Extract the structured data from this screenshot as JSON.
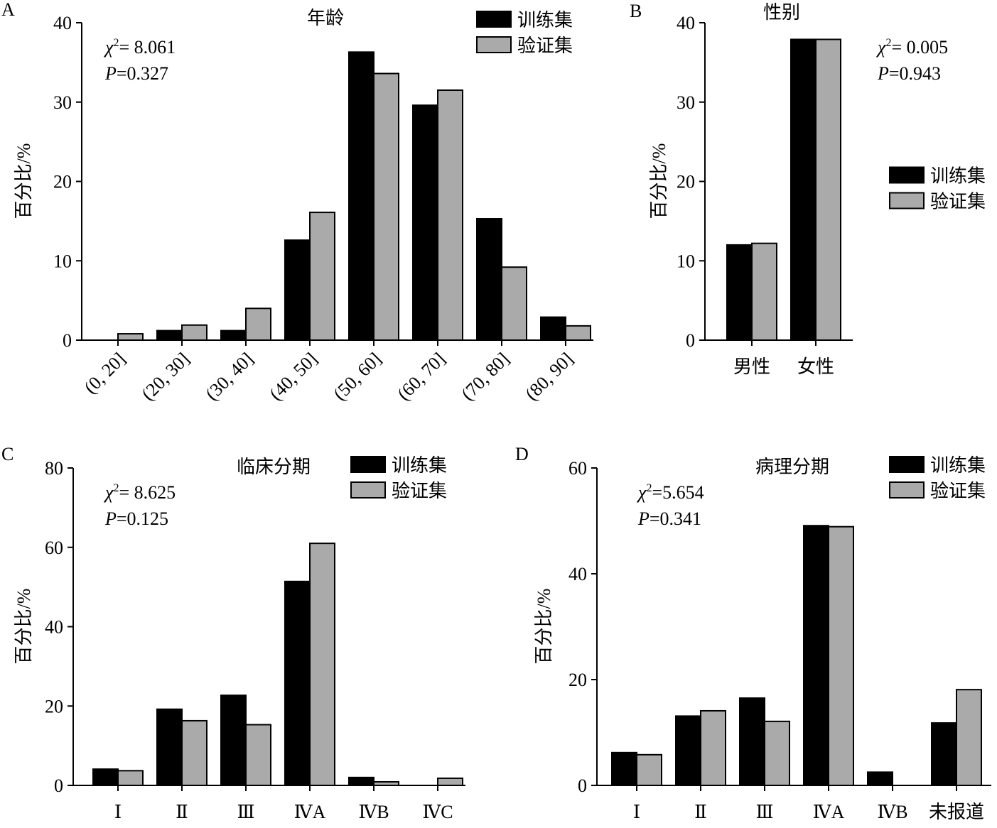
{
  "chart_data": [
    {
      "type": "bar",
      "panel": "A",
      "title": "年龄",
      "ylabel": "百分比/%",
      "categories": [
        "(0, 20]",
        "(20, 30]",
        "(30, 40]",
        "(40, 50]",
        "(50, 60]",
        "(60, 70]",
        "(70, 80]",
        "(80, 90]"
      ],
      "series": [
        {
          "name": "训练集",
          "color": "#000000",
          "values": [
            0,
            1.2,
            1.2,
            12.6,
            36.3,
            29.6,
            15.3,
            2.9
          ]
        },
        {
          "name": "验证集",
          "color": "#aaaaaa",
          "values": [
            0.8,
            1.9,
            4.0,
            16.1,
            33.6,
            31.5,
            9.2,
            1.8
          ]
        }
      ],
      "ylim": [
        0,
        40
      ],
      "yticks": [
        0,
        10,
        20,
        30,
        40
      ],
      "legend": "upper right",
      "rotate_xlabels": true,
      "annotation": {
        "chi_symbol": "χ",
        "chi_sup": "2",
        "chi_text": "= 8.061",
        "p_symbol": "P",
        "p_text": "=0.327"
      }
    },
    {
      "type": "bar",
      "panel": "B",
      "title": "性别",
      "ylabel": "百分比/%",
      "categories": [
        "男性",
        "女性"
      ],
      "series": [
        {
          "name": "训练集",
          "color": "#000000",
          "values": [
            12.0,
            37.9
          ]
        },
        {
          "name": "验证集",
          "color": "#aaaaaa",
          "values": [
            12.2,
            37.9
          ]
        }
      ],
      "ylim": [
        0,
        40
      ],
      "yticks": [
        0,
        10,
        20,
        30,
        40
      ],
      "legend": "center right",
      "rotate_xlabels": false,
      "annotation": {
        "chi_symbol": "χ",
        "chi_sup": "2",
        "chi_text": "= 0.005",
        "p_symbol": "P",
        "p_text": "=0.943"
      }
    },
    {
      "type": "bar",
      "panel": "C",
      "title": "临床分期",
      "ylabel": "百分比/%",
      "categories": [
        "Ⅰ",
        "Ⅱ",
        "Ⅲ",
        "ⅣA",
        "ⅣB",
        "ⅣC"
      ],
      "series": [
        {
          "name": "训练集",
          "color": "#000000",
          "values": [
            4.1,
            19.2,
            22.7,
            51.4,
            2.0,
            0
          ]
        },
        {
          "name": "验证集",
          "color": "#aaaaaa",
          "values": [
            3.7,
            16.3,
            15.3,
            61.0,
            0.9,
            1.8
          ]
        }
      ],
      "ylim": [
        0,
        80
      ],
      "yticks": [
        0,
        20,
        40,
        60,
        80
      ],
      "legend": "upper right",
      "rotate_xlabels": false,
      "annotation": {
        "chi_symbol": "χ",
        "chi_sup": "2",
        "chi_text": "= 8.625",
        "p_symbol": "P",
        "p_text": "=0.125"
      }
    },
    {
      "type": "bar",
      "panel": "D",
      "title": "病理分期",
      "ylabel": "百分比/%",
      "categories": [
        "Ⅰ",
        "Ⅱ",
        "Ⅲ",
        "ⅣA",
        "ⅣB",
        "未报道"
      ],
      "series": [
        {
          "name": "训练集",
          "color": "#000000",
          "values": [
            6.2,
            13.1,
            16.5,
            49.1,
            2.5,
            11.8
          ]
        },
        {
          "name": "验证集",
          "color": "#aaaaaa",
          "values": [
            5.8,
            14.1,
            12.1,
            48.9,
            0,
            18.1
          ]
        }
      ],
      "ylim": [
        0,
        60
      ],
      "yticks": [
        0,
        20,
        40,
        60
      ],
      "legend": "upper right",
      "rotate_xlabels": false,
      "annotation": {
        "chi_symbol": "χ",
        "chi_sup": "2",
        "chi_text": "=5.654",
        "p_symbol": "P",
        "p_text": "=0.341"
      }
    }
  ]
}
